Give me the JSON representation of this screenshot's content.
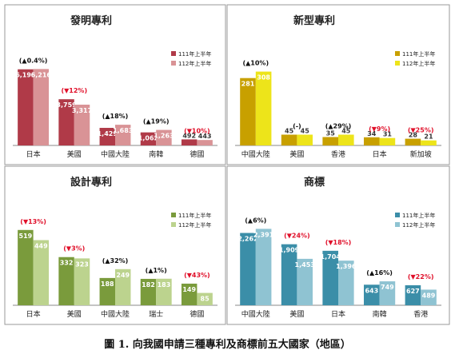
{
  "caption": "圖 1. 向我國申請三種專利及商標前五大國家（地區）",
  "chart_data": [
    {
      "type": "bar",
      "title": "發明專利",
      "categories": [
        "日本",
        "美國",
        "中國大陸",
        "南韓",
        "德國"
      ],
      "series": [
        {
          "name": "111年上半年",
          "values": [
            6193,
            3759,
            1429,
            1062,
            492
          ]
        },
        {
          "name": "112年上半年",
          "values": [
            6216,
            3317,
            1683,
            1263,
            443
          ]
        }
      ],
      "changes": [
        {
          "dir": "up",
          "text": "0.4%"
        },
        {
          "dir": "down",
          "text": "12%"
        },
        {
          "dir": "up",
          "text": "18%"
        },
        {
          "dir": "up",
          "text": "19%"
        },
        {
          "dir": "down",
          "text": "10%"
        }
      ],
      "colors": [
        "#b03a48",
        "#d99396"
      ],
      "ylim": [
        0,
        7800
      ],
      "legend": "top-right"
    },
    {
      "type": "bar",
      "title": "新型專利",
      "categories": [
        "中國大陸",
        "美國",
        "香港",
        "日本",
        "新加坡"
      ],
      "series": [
        {
          "name": "111年上半年",
          "values": [
            281,
            45,
            35,
            34,
            28
          ]
        },
        {
          "name": "112年上半年",
          "values": [
            308,
            45,
            45,
            31,
            21
          ]
        }
      ],
      "changes": [
        {
          "dir": "up",
          "text": "10%"
        },
        {
          "dir": "none",
          "text": "-"
        },
        {
          "dir": "up",
          "text": "29%"
        },
        {
          "dir": "down",
          "text": "9%"
        },
        {
          "dir": "down",
          "text": "25%"
        }
      ],
      "colors": [
        "#c8a000",
        "#ede41a"
      ],
      "ylim": [
        0,
        400
      ],
      "legend": "top-right"
    },
    {
      "type": "bar",
      "title": "設計專利",
      "categories": [
        "日本",
        "美國",
        "中國大陸",
        "瑞士",
        "德國"
      ],
      "series": [
        {
          "name": "111年上半年",
          "values": [
            519,
            332,
            188,
            182,
            149
          ]
        },
        {
          "name": "112年上半年",
          "values": [
            449,
            323,
            249,
            183,
            85
          ]
        }
      ],
      "changes": [
        {
          "dir": "down",
          "text": "13%"
        },
        {
          "dir": "down",
          "text": "3%"
        },
        {
          "dir": "up",
          "text": "32%"
        },
        {
          "dir": "up",
          "text": "1%"
        },
        {
          "dir": "down",
          "text": "43%"
        }
      ],
      "colors": [
        "#7a9b3c",
        "#bcd38e"
      ],
      "ylim": [
        0,
        650
      ],
      "legend": "top-right"
    },
    {
      "type": "bar",
      "title": "商標",
      "categories": [
        "中國大陸",
        "美國",
        "日本",
        "南韓",
        "香港"
      ],
      "series": [
        {
          "name": "111年上半年",
          "values": [
            2262,
            1909,
            1704,
            643,
            627
          ]
        },
        {
          "name": "112年上半年",
          "values": [
            2391,
            1453,
            1396,
            749,
            489
          ]
        }
      ],
      "changes": [
        {
          "dir": "up",
          "text": "6%"
        },
        {
          "dir": "down",
          "text": "24%"
        },
        {
          "dir": "down",
          "text": "18%"
        },
        {
          "dir": "up",
          "text": "16%"
        },
        {
          "dir": "down",
          "text": "22%"
        }
      ],
      "colors": [
        "#3b8ea8",
        "#8fc3d2"
      ],
      "ylim": [
        0,
        2950
      ],
      "legend": "top-right"
    }
  ]
}
